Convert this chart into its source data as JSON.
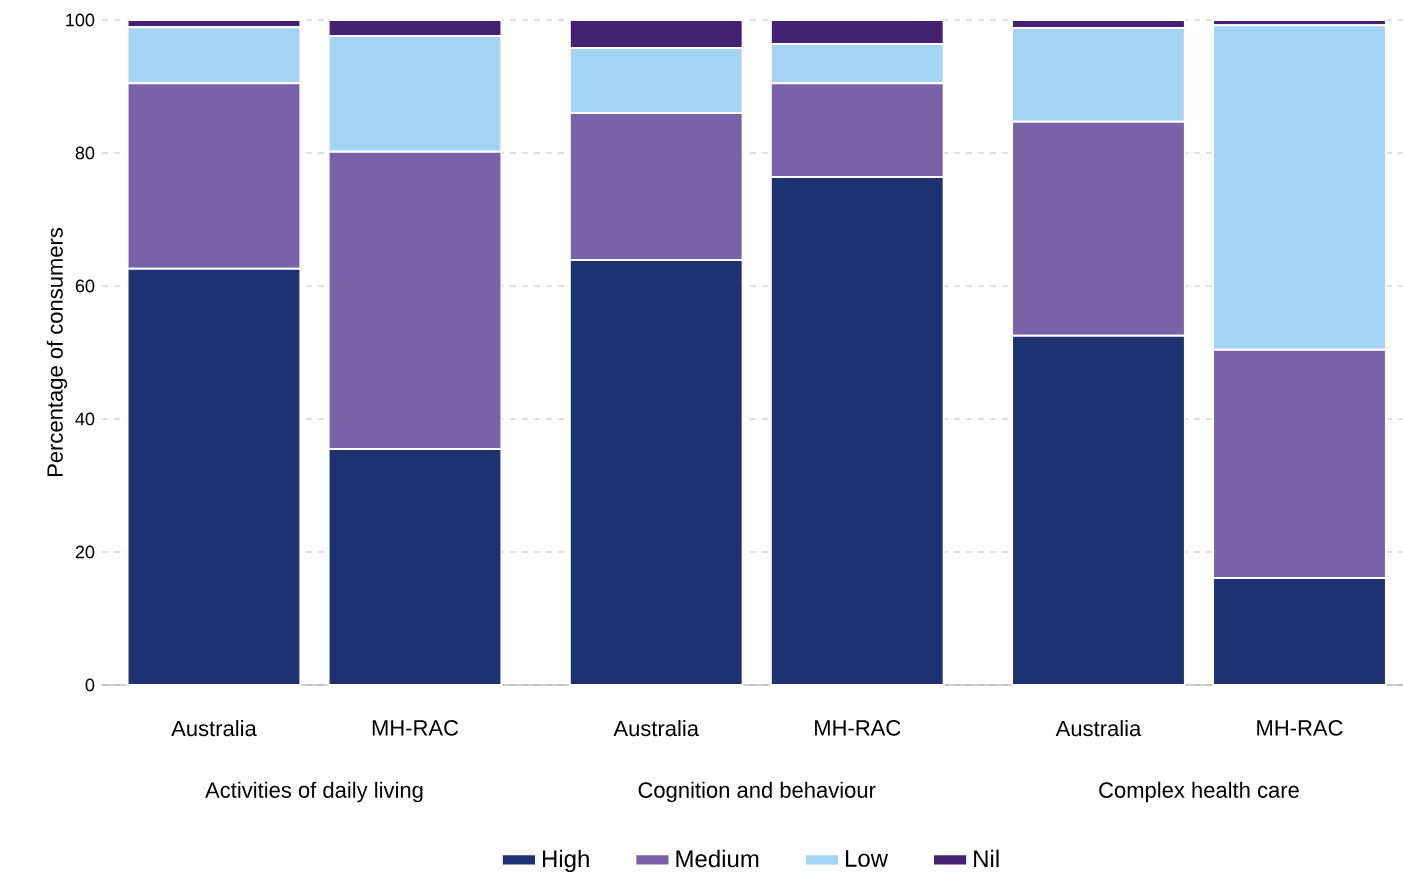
{
  "chart_data": {
    "type": "bar",
    "stacked": true,
    "ylabel": "Percentage of consumers",
    "categories": [
      "Australia",
      "MH-RAC",
      "Australia",
      "MH-RAC",
      "Australia",
      "MH-RAC"
    ],
    "annotations": [
      "Activities of daily living",
      "Cognition and behaviour",
      "Complex health care"
    ],
    "series": [
      {
        "name": "High",
        "color": "#1e3170",
        "values": [
          62.6,
          35.5,
          63.9,
          76.4,
          52.5,
          16.1
        ]
      },
      {
        "name": "Medium",
        "color": "#7862a8",
        "values": [
          27.9,
          44.7,
          22.1,
          14.1,
          32.2,
          34.3
        ]
      },
      {
        "name": "Low",
        "color": "#a3d4f3",
        "values": [
          8.4,
          17.4,
          9.8,
          5.9,
          14.1,
          48.8
        ]
      },
      {
        "name": "Nil",
        "color": "#432371",
        "values": [
          1.1,
          2.4,
          4.2,
          3.6,
          1.2,
          0.8
        ]
      }
    ],
    "ylim": [
      0,
      100
    ],
    "yticks": [
      0,
      20,
      40,
      60,
      80,
      100
    ],
    "grid": "y",
    "legend": "bottom"
  }
}
